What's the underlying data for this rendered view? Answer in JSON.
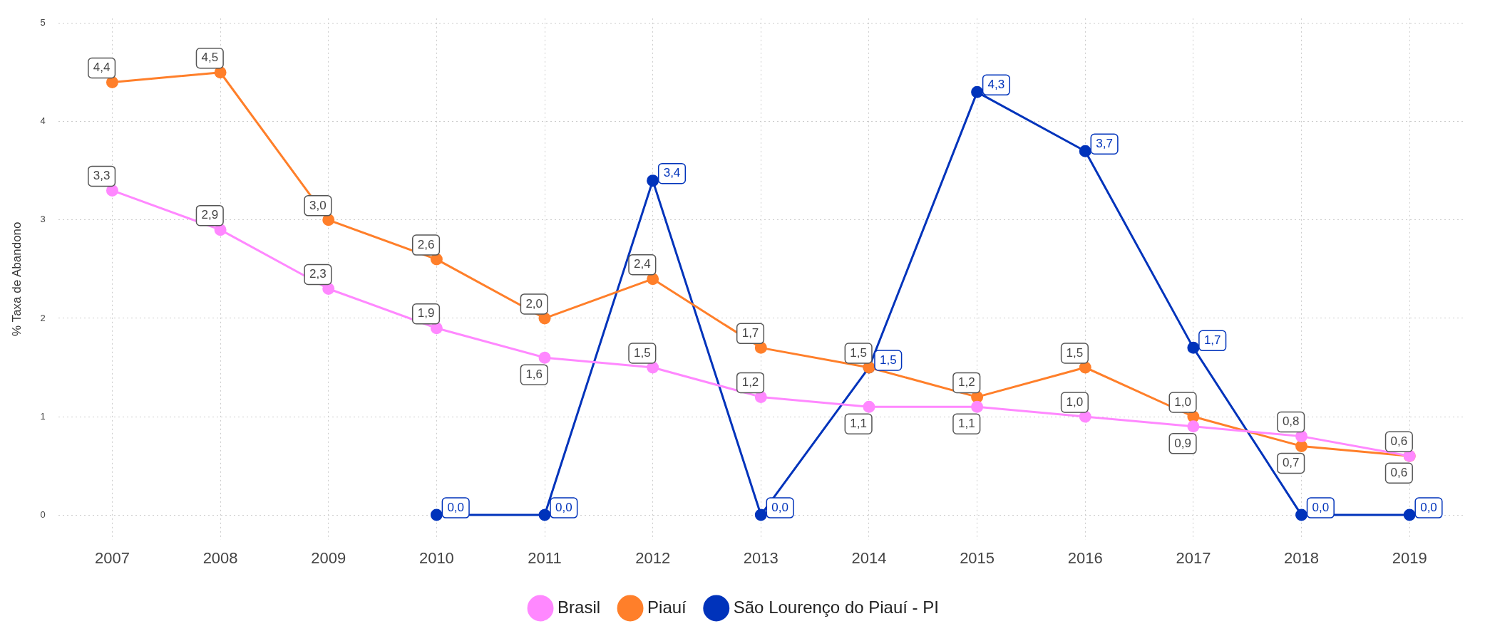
{
  "chart_data": {
    "type": "line",
    "ylabel": "% Taxa de Abandono",
    "categories": [
      "2007",
      "2008",
      "2009",
      "2010",
      "2011",
      "2012",
      "2013",
      "2014",
      "2015",
      "2016",
      "2017",
      "2018",
      "2019"
    ],
    "series": [
      {
        "name": "Brasil",
        "color": "#ff88ff",
        "values": [
          3.3,
          2.9,
          2.3,
          1.9,
          1.6,
          1.5,
          1.2,
          1.1,
          1.1,
          1.0,
          0.9,
          0.8,
          0.6
        ],
        "value_labels": [
          "3,3",
          "2,9",
          "2,3",
          "1,9",
          "1,6",
          "1,5",
          "1,2",
          "1,1",
          "1,1",
          "1,0",
          "0,9",
          "0,8",
          "0,6"
        ]
      },
      {
        "name": "Piauí",
        "color": "#ff7f2a",
        "values": [
          4.4,
          4.5,
          3.0,
          2.6,
          2.0,
          2.4,
          1.7,
          1.5,
          1.2,
          1.5,
          1.0,
          0.7,
          0.6
        ],
        "value_labels": [
          "4,4",
          "4,5",
          "3,0",
          "2,6",
          "2,0",
          "2,4",
          "1,7",
          "1,5",
          "1,2",
          "1,5",
          "1,0",
          "0,7",
          "0,6"
        ]
      },
      {
        "name": "São Lourenço do Piauí - PI",
        "color": "#0033bb",
        "values": [
          null,
          null,
          null,
          0,
          0,
          3.4,
          0,
          1.5,
          4.3,
          3.7,
          1.7,
          0,
          0
        ],
        "value_labels": [
          null,
          null,
          null,
          "0,0",
          "0,0",
          "3,4",
          "0,0",
          "1,5",
          "4,3",
          "3,7",
          "1,7",
          "0,0",
          "0,0"
        ]
      }
    ],
    "ylim": [
      -0.25,
      5.05
    ],
    "yticks": [
      0,
      1,
      2,
      3,
      4,
      5
    ],
    "grid": true,
    "legend": "bottom",
    "marker": "circle",
    "line_style": "solid"
  }
}
